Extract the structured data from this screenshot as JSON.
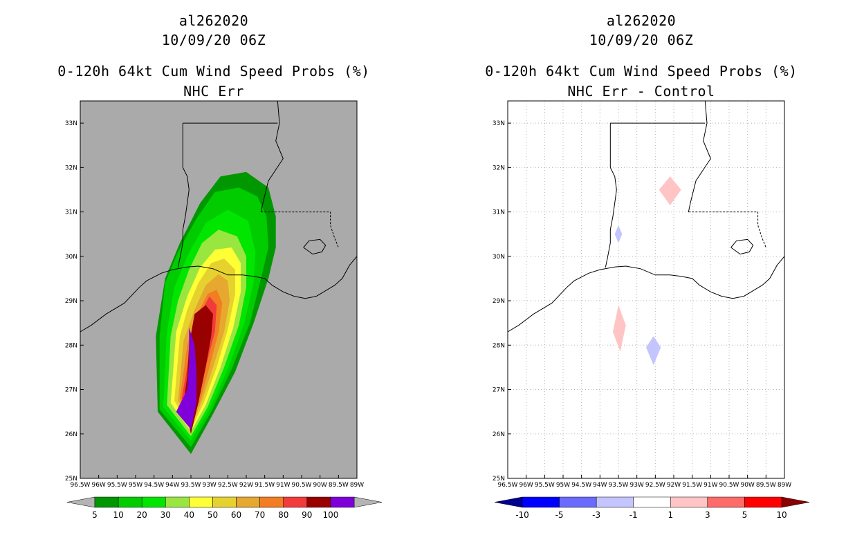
{
  "left": {
    "storm_id": "al262020",
    "datetime": "10/09/20 06Z",
    "product": "0-120h 64kt Cum Wind Speed Probs (%)",
    "subtitle": "NHC Err",
    "background": "#aaaaaa",
    "colorbar": {
      "labels": [
        "5",
        "10",
        "20",
        "30",
        "40",
        "50",
        "60",
        "70",
        "80",
        "90",
        "100"
      ],
      "colors": [
        "#009700",
        "#00cc00",
        "#00e600",
        "#99e640",
        "#ffff36",
        "#e6d22e",
        "#e6a82e",
        "#f27d23",
        "#f23c3c",
        "#990000",
        "#8000d9"
      ],
      "under_color": "#b4b4b4",
      "over_color": "#b4b4b4"
    }
  },
  "right": {
    "storm_id": "al262020",
    "datetime": "10/09/20 06Z",
    "product": "0-120h 64kt Cum Wind Speed Probs (%)",
    "subtitle": "NHC Err - Control",
    "background": "#ffffff",
    "colorbar": {
      "labels": [
        "-10",
        "-5",
        "-3",
        "-1",
        "1",
        "3",
        "5",
        "10"
      ],
      "colors": [
        "#0000ff",
        "#6a6aff",
        "#c4c4ff",
        "#ffffff",
        "#ffc4c4",
        "#ff6a6a",
        "#ff0000"
      ],
      "under_color": "#000090",
      "over_color": "#8b0000"
    }
  },
  "axes": {
    "lat_labels": [
      "33N",
      "32N",
      "31N",
      "30N",
      "29N",
      "28N",
      "27N",
      "26N",
      "25N"
    ],
    "lon_labels": [
      "96.5W",
      "96W",
      "95.5W",
      "95W",
      "94.5W",
      "94W",
      "93.5W",
      "93W",
      "92.5W",
      "92W",
      "91.5W",
      "91W",
      "90.5W",
      "90W",
      "89.5W",
      "89W"
    ],
    "lat_range": [
      25,
      33.5
    ],
    "lon_range": [
      -96.5,
      -89
    ]
  },
  "colors": {
    "coast": "#000000",
    "grid": "#b4b4b4"
  }
}
